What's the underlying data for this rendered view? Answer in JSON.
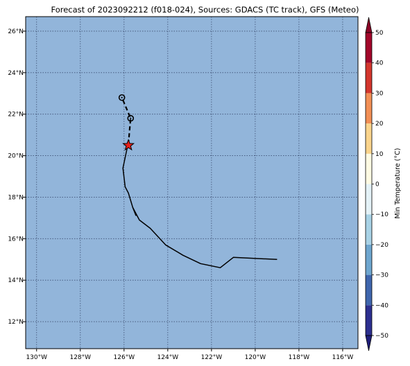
{
  "title": "Forecast of 2023092212 (f018-024), Sources: GDACS (TC track), GFS (Meteo)",
  "colors": {
    "ocean": "#92b5da",
    "grid": "#3d4f73",
    "track": "#000000",
    "star": "#e8201a"
  },
  "map": {
    "lon_range": [
      -130.5,
      -115.3
    ],
    "lat_range": [
      10.7,
      26.7
    ],
    "lon_ticks": [
      {
        "value": -130,
        "label": "130°W"
      },
      {
        "value": -128,
        "label": "128°W"
      },
      {
        "value": -126,
        "label": "126°W"
      },
      {
        "value": -124,
        "label": "124°W"
      },
      {
        "value": -122,
        "label": "122°W"
      },
      {
        "value": -120,
        "label": "120°W"
      },
      {
        "value": -118,
        "label": "118°W"
      },
      {
        "value": -116,
        "label": "116°W"
      }
    ],
    "lat_ticks": [
      {
        "value": 12,
        "label": "12°N"
      },
      {
        "value": 14,
        "label": "14°N"
      },
      {
        "value": 16,
        "label": "16°N"
      },
      {
        "value": 18,
        "label": "18°N"
      },
      {
        "value": 20,
        "label": "20°N"
      },
      {
        "value": 22,
        "label": "22°N"
      },
      {
        "value": 24,
        "label": "24°N"
      },
      {
        "value": 26,
        "label": "26°N"
      }
    ],
    "grid": true,
    "past_track": [
      [
        -119.0,
        15.0
      ],
      [
        -121.0,
        15.1
      ],
      [
        -121.6,
        14.6
      ],
      [
        -122.5,
        14.8
      ],
      [
        -123.3,
        15.2
      ],
      [
        -124.1,
        15.7
      ],
      [
        -124.8,
        16.5
      ],
      [
        -125.3,
        16.9
      ],
      [
        -125.6,
        17.5
      ],
      [
        -125.8,
        18.2
      ],
      [
        -125.95,
        18.5
      ],
      [
        -126.05,
        19.4
      ],
      [
        -125.85,
        20.4
      ]
    ],
    "track_stub": [
      [
        -125.45,
        17.1
      ],
      [
        -125.6,
        17.5
      ]
    ],
    "forecast_track": [
      [
        -125.8,
        20.55
      ],
      [
        -125.75,
        21.2
      ],
      [
        -125.7,
        21.8
      ],
      [
        -126.1,
        22.8
      ]
    ],
    "current_position": {
      "lon": -125.8,
      "lat": 20.5
    },
    "forecast_points": [
      {
        "lon": -125.7,
        "lat": 21.8
      },
      {
        "lon": -126.1,
        "lat": 22.8
      }
    ]
  },
  "colorbar": {
    "label": "Min Temperature (°C)",
    "range": [
      -50,
      50
    ],
    "ticks": [
      {
        "value": 50,
        "label": "50"
      },
      {
        "value": 40,
        "label": "40"
      },
      {
        "value": 30,
        "label": "30"
      },
      {
        "value": 20,
        "label": "20"
      },
      {
        "value": 10,
        "label": "10"
      },
      {
        "value": 0,
        "label": "0"
      },
      {
        "value": -10,
        "label": "−10"
      },
      {
        "value": -20,
        "label": "−20"
      },
      {
        "value": -30,
        "label": "−30"
      },
      {
        "value": -40,
        "label": "−40"
      },
      {
        "value": -50,
        "label": "−50"
      }
    ],
    "bins": [
      {
        "from": -50,
        "to": -40,
        "color": "#2c2f8f"
      },
      {
        "from": -40,
        "to": -30,
        "color": "#3f66ad"
      },
      {
        "from": -30,
        "to": -20,
        "color": "#6ea6cf"
      },
      {
        "from": -20,
        "to": -10,
        "color": "#a8d2e6"
      },
      {
        "from": -10,
        "to": 0,
        "color": "#e4f2f7"
      },
      {
        "from": 0,
        "to": 10,
        "color": "#fffbe3"
      },
      {
        "from": 10,
        "to": 20,
        "color": "#fbd48c"
      },
      {
        "from": 20,
        "to": 30,
        "color": "#f28f55"
      },
      {
        "from": 30,
        "to": 40,
        "color": "#d3362d"
      },
      {
        "from": 40,
        "to": 50,
        "color": "#a2062a"
      }
    ],
    "extend_low_color": "#1f1e7a",
    "extend_high_color": "#8b0326"
  }
}
